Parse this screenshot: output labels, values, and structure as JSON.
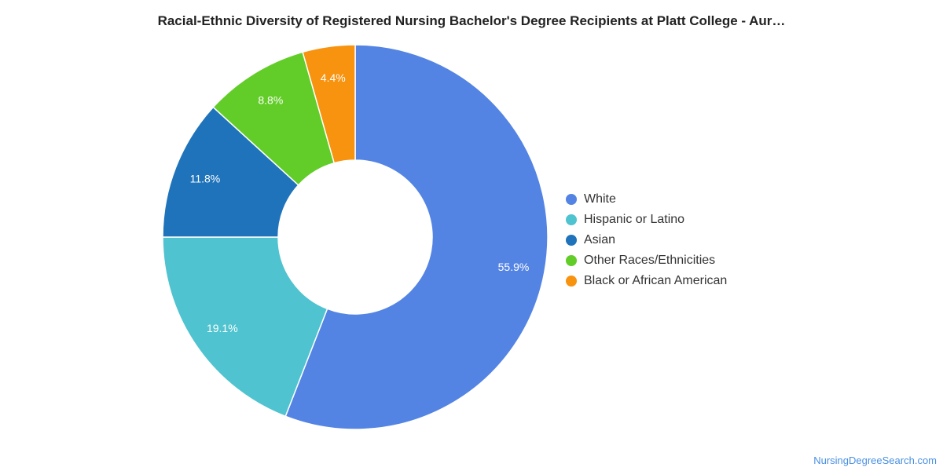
{
  "chart_data": {
    "type": "pie",
    "donut": true,
    "title": "Racial-Ethnic Diversity of Registered Nursing Bachelor's Degree Recipients at Platt College - Aur…",
    "slices": [
      {
        "name": "White",
        "value": 55.9,
        "label": "55.9%",
        "color": "#5384e3"
      },
      {
        "name": "Hispanic or Latino",
        "value": 19.1,
        "label": "19.1%",
        "color": "#4fc3cf"
      },
      {
        "name": "Asian",
        "value": 11.8,
        "label": "11.8%",
        "color": "#1f73ba"
      },
      {
        "name": "Other Races/Ethnicities",
        "value": 8.8,
        "label": "8.8%",
        "color": "#62cd28"
      },
      {
        "name": "Black or African American",
        "value": 4.4,
        "label": "4.4%",
        "color": "#f7930f"
      }
    ],
    "legend_position": "right"
  },
  "source_text": "NursingDegreeSearch.com"
}
